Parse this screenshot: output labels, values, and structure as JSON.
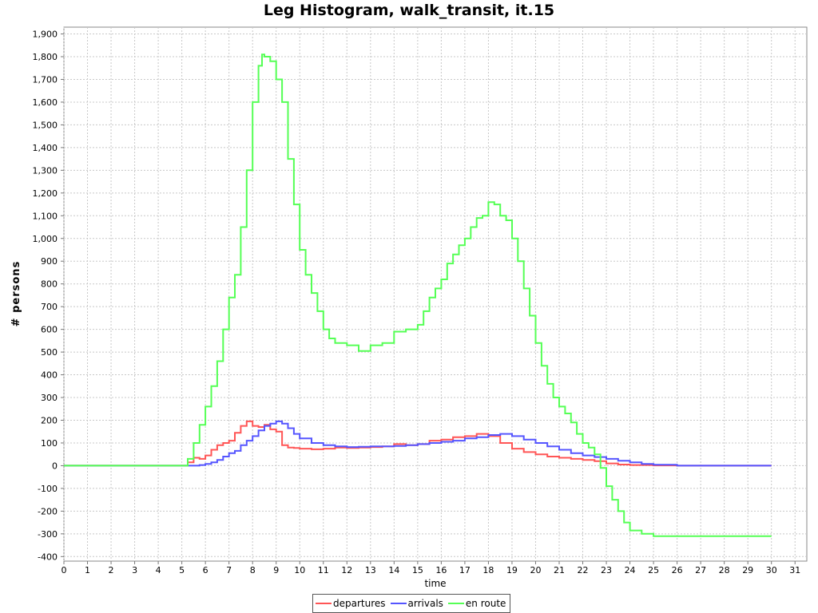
{
  "chart_data": {
    "type": "line",
    "title": "Leg Histogram, walk_transit, it.15",
    "xlabel": "time",
    "ylabel": "# persons",
    "xlim": [
      0,
      31.5
    ],
    "ylim": [
      -420,
      1930
    ],
    "xticks": [
      0,
      1,
      2,
      3,
      4,
      5,
      6,
      7,
      8,
      9,
      10,
      11,
      12,
      13,
      14,
      15,
      16,
      17,
      18,
      19,
      20,
      21,
      22,
      23,
      24,
      25,
      26,
      27,
      28,
      29,
      30,
      31
    ],
    "yticks": [
      -400,
      -300,
      -200,
      -100,
      0,
      100,
      200,
      300,
      400,
      500,
      600,
      700,
      800,
      900,
      1000,
      1100,
      1200,
      1300,
      1400,
      1500,
      1600,
      1700,
      1800,
      1900
    ],
    "ytick_labels": [
      "-400",
      "-300",
      "-200",
      "-100",
      "0",
      "100",
      "200",
      "300",
      "400",
      "500",
      "600",
      "700",
      "800",
      "900",
      "1,000",
      "1,100",
      "1,200",
      "1,300",
      "1,400",
      "1,500",
      "1,600",
      "1,700",
      "1,800",
      "1,900"
    ],
    "grid": true,
    "legend_position": "bottom",
    "step": true,
    "series": [
      {
        "name": "departures",
        "color": "#ff5555",
        "points": [
          [
            0,
            0
          ],
          [
            5,
            0
          ],
          [
            5.25,
            15
          ],
          [
            5.5,
            35
          ],
          [
            5.75,
            30
          ],
          [
            6,
            45
          ],
          [
            6.25,
            70
          ],
          [
            6.5,
            90
          ],
          [
            6.75,
            100
          ],
          [
            7,
            110
          ],
          [
            7.25,
            145
          ],
          [
            7.5,
            175
          ],
          [
            7.75,
            195
          ],
          [
            8,
            175
          ],
          [
            8.25,
            170
          ],
          [
            8.5,
            180
          ],
          [
            8.75,
            160
          ],
          [
            9,
            150
          ],
          [
            9.25,
            90
          ],
          [
            9.5,
            80
          ],
          [
            9.75,
            78
          ],
          [
            10,
            75
          ],
          [
            10.5,
            72
          ],
          [
            11,
            75
          ],
          [
            11.5,
            80
          ],
          [
            12,
            78
          ],
          [
            12.5,
            80
          ],
          [
            13,
            82
          ],
          [
            13.5,
            85
          ],
          [
            14,
            95
          ],
          [
            14.5,
            90
          ],
          [
            15,
            95
          ],
          [
            15.5,
            110
          ],
          [
            16,
            115
          ],
          [
            16.5,
            125
          ],
          [
            17,
            130
          ],
          [
            17.5,
            140
          ],
          [
            18,
            130
          ],
          [
            18.5,
            100
          ],
          [
            19,
            75
          ],
          [
            19.5,
            60
          ],
          [
            20,
            50
          ],
          [
            20.5,
            40
          ],
          [
            21,
            35
          ],
          [
            21.5,
            30
          ],
          [
            22,
            25
          ],
          [
            22.5,
            20
          ],
          [
            23,
            10
          ],
          [
            23.5,
            5
          ],
          [
            24,
            3
          ],
          [
            25,
            1
          ],
          [
            26,
            0
          ],
          [
            30,
            0
          ]
        ]
      },
      {
        "name": "arrivals",
        "color": "#5555ff",
        "points": [
          [
            0,
            0
          ],
          [
            5,
            0
          ],
          [
            5.5,
            0
          ],
          [
            5.75,
            3
          ],
          [
            6,
            8
          ],
          [
            6.25,
            15
          ],
          [
            6.5,
            25
          ],
          [
            6.75,
            40
          ],
          [
            7,
            55
          ],
          [
            7.25,
            65
          ],
          [
            7.5,
            90
          ],
          [
            7.75,
            110
          ],
          [
            8,
            130
          ],
          [
            8.25,
            155
          ],
          [
            8.5,
            175
          ],
          [
            8.75,
            185
          ],
          [
            9,
            195
          ],
          [
            9.25,
            185
          ],
          [
            9.5,
            165
          ],
          [
            9.75,
            140
          ],
          [
            10,
            120
          ],
          [
            10.5,
            100
          ],
          [
            11,
            90
          ],
          [
            11.5,
            85
          ],
          [
            12,
            82
          ],
          [
            12.5,
            83
          ],
          [
            13,
            85
          ],
          [
            13.5,
            85
          ],
          [
            14,
            87
          ],
          [
            14.5,
            90
          ],
          [
            15,
            95
          ],
          [
            15.5,
            100
          ],
          [
            16,
            105
          ],
          [
            16.5,
            110
          ],
          [
            17,
            120
          ],
          [
            17.5,
            125
          ],
          [
            18,
            135
          ],
          [
            18.5,
            140
          ],
          [
            19,
            130
          ],
          [
            19.5,
            115
          ],
          [
            20,
            100
          ],
          [
            20.5,
            85
          ],
          [
            21,
            70
          ],
          [
            21.5,
            55
          ],
          [
            22,
            45
          ],
          [
            22.5,
            38
          ],
          [
            23,
            30
          ],
          [
            23.5,
            22
          ],
          [
            24,
            15
          ],
          [
            24.5,
            8
          ],
          [
            25,
            4
          ],
          [
            26,
            0
          ],
          [
            30,
            0
          ]
        ]
      },
      {
        "name": "en route",
        "color": "#55ff55",
        "points": [
          [
            0,
            0
          ],
          [
            5,
            0
          ],
          [
            5.25,
            30
          ],
          [
            5.5,
            100
          ],
          [
            5.75,
            180
          ],
          [
            6,
            260
          ],
          [
            6.25,
            350
          ],
          [
            6.5,
            460
          ],
          [
            6.75,
            600
          ],
          [
            7,
            740
          ],
          [
            7.25,
            840
          ],
          [
            7.5,
            1050
          ],
          [
            7.75,
            1300
          ],
          [
            8,
            1600
          ],
          [
            8.25,
            1760
          ],
          [
            8.4,
            1810
          ],
          [
            8.5,
            1800
          ],
          [
            8.75,
            1780
          ],
          [
            9,
            1700
          ],
          [
            9.25,
            1600
          ],
          [
            9.5,
            1350
          ],
          [
            9.75,
            1150
          ],
          [
            10,
            950
          ],
          [
            10.25,
            840
          ],
          [
            10.5,
            760
          ],
          [
            10.75,
            680
          ],
          [
            11,
            600
          ],
          [
            11.25,
            560
          ],
          [
            11.5,
            540
          ],
          [
            12,
            530
          ],
          [
            12.5,
            505
          ],
          [
            13,
            530
          ],
          [
            13.5,
            540
          ],
          [
            14,
            590
          ],
          [
            14.5,
            600
          ],
          [
            15,
            620
          ],
          [
            15.25,
            680
          ],
          [
            15.5,
            740
          ],
          [
            15.75,
            780
          ],
          [
            16,
            820
          ],
          [
            16.25,
            890
          ],
          [
            16.5,
            930
          ],
          [
            16.75,
            970
          ],
          [
            17,
            1000
          ],
          [
            17.25,
            1050
          ],
          [
            17.5,
            1090
          ],
          [
            17.75,
            1100
          ],
          [
            18,
            1160
          ],
          [
            18.25,
            1150
          ],
          [
            18.5,
            1100
          ],
          [
            18.75,
            1080
          ],
          [
            19,
            1000
          ],
          [
            19.25,
            900
          ],
          [
            19.5,
            780
          ],
          [
            19.75,
            660
          ],
          [
            20,
            540
          ],
          [
            20.25,
            440
          ],
          [
            20.5,
            360
          ],
          [
            20.75,
            300
          ],
          [
            21,
            260
          ],
          [
            21.25,
            230
          ],
          [
            21.5,
            190
          ],
          [
            21.75,
            140
          ],
          [
            22,
            100
          ],
          [
            22.25,
            80
          ],
          [
            22.5,
            50
          ],
          [
            22.75,
            -10
          ],
          [
            23,
            -90
          ],
          [
            23.25,
            -150
          ],
          [
            23.5,
            -200
          ],
          [
            23.75,
            -250
          ],
          [
            24,
            -285
          ],
          [
            24.5,
            -300
          ],
          [
            25,
            -310
          ],
          [
            26,
            -310
          ],
          [
            30,
            -310
          ]
        ]
      }
    ]
  }
}
